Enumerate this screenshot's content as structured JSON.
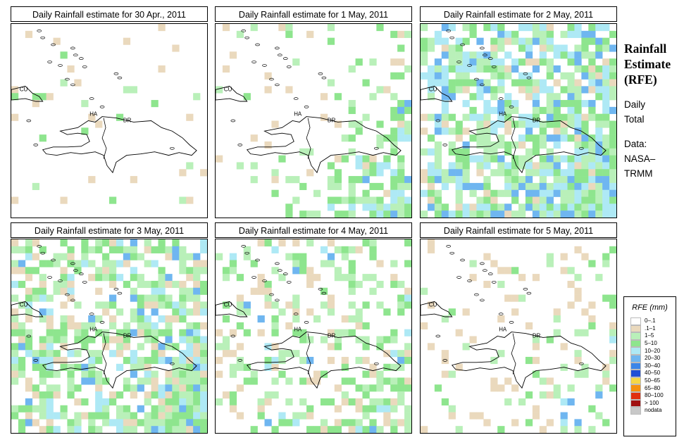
{
  "panels": [
    {
      "title": "Daily Rainfall estimate for  30 Apr., 2011",
      "seed": 11,
      "grid": {
        "green": 0.02,
        "tan": 0.03,
        "blue": 0.0,
        "east": 0.0
      }
    },
    {
      "title": "Daily Rainfall estimate for  1 May, 2011",
      "seed": 22,
      "grid": {
        "green": 0.03,
        "tan": 0.03,
        "blue": 0.0,
        "east": 0.9
      }
    },
    {
      "title": "Daily Rainfall estimate for  2 May, 2011",
      "seed": 33,
      "grid": {
        "green": 0.35,
        "tan": 0.05,
        "blue": 0.25,
        "east": 0.5
      }
    },
    {
      "title": "Daily Rainfall estimate for  3 May, 2011",
      "seed": 44,
      "grid": {
        "green": 0.3,
        "tan": 0.12,
        "blue": 0.12,
        "east": 0.55
      }
    },
    {
      "title": "Daily Rainfall estimate for  4 May, 2011",
      "seed": 55,
      "grid": {
        "green": 0.18,
        "tan": 0.1,
        "blue": 0.02,
        "east": 0.35
      }
    },
    {
      "title": "Daily Rainfall estimate for  5 May, 2011",
      "seed": 66,
      "grid": {
        "green": 0.04,
        "tan": 0.08,
        "blue": 0.0,
        "east": 0.3
      }
    }
  ],
  "map_labels": {
    "cu": "CU",
    "ha": "HA",
    "dr": "DR"
  },
  "side": {
    "title_line1": "Rainfall",
    "title_line2": "Estimate",
    "title_line3": "(RFE)",
    "line1": "Daily",
    "line2": "Total",
    "line3": "Data:",
    "line4": "NASA–",
    "line5": "TRMM"
  },
  "legend": {
    "title": "RFE (mm)",
    "items": [
      {
        "label": "0–.1",
        "color": "#ffffff"
      },
      {
        "label": ".1–1",
        "color": "#ead9bd"
      },
      {
        "label": "1–5",
        "color": "#b9f0b9"
      },
      {
        "label": "5–10",
        "color": "#8ee58e"
      },
      {
        "label": "10–20",
        "color": "#aee9f5"
      },
      {
        "label": "20–30",
        "color": "#6fb6f0"
      },
      {
        "label": "30–40",
        "color": "#3b86e8"
      },
      {
        "label": "40–50",
        "color": "#1f4fd6"
      },
      {
        "label": "50–65",
        "color": "#f5d646"
      },
      {
        "label": "65–80",
        "color": "#f5900f"
      },
      {
        "label": "80–100",
        "color": "#e03010"
      },
      {
        "label": "> 100",
        "color": "#a01010"
      },
      {
        "label": "nodata",
        "color": "#c8c8c8"
      }
    ]
  }
}
